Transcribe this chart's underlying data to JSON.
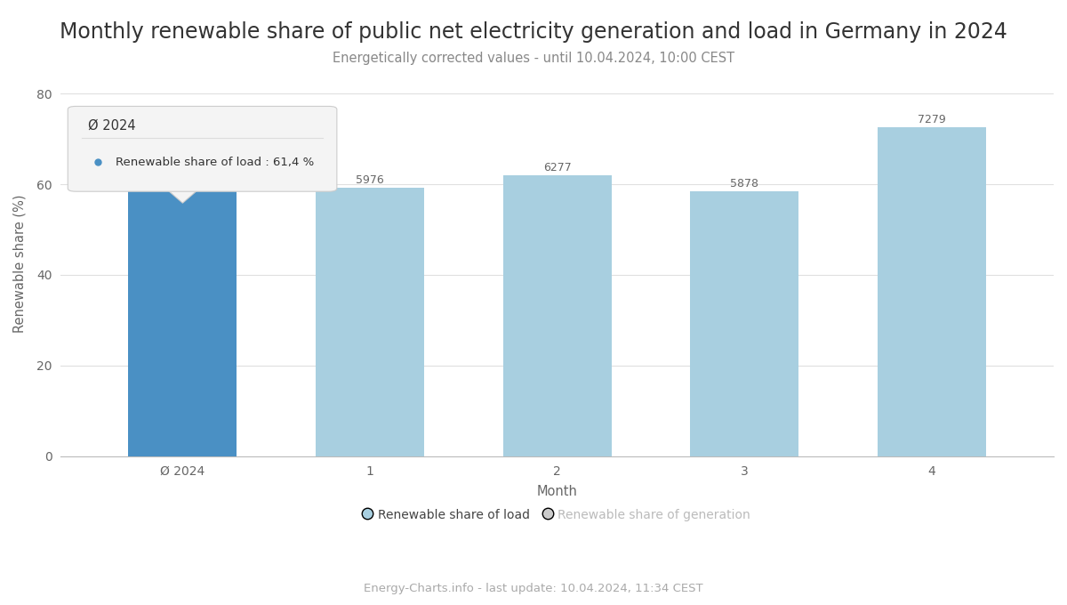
{
  "title": "Monthly renewable share of public net electricity generation and load in Germany in 2024",
  "subtitle": "Energetically corrected values - until 10.04.2024, 10:00 CEST",
  "footer": "Energy-Charts.info - last update: 10.04.2024, 11:34 CEST",
  "xlabel": "Month",
  "ylabel": "Renewable share (%)",
  "categories": [
    "Ø 2024",
    "1",
    "2",
    "3",
    "4"
  ],
  "values": [
    61.4,
    59.2,
    62.0,
    58.5,
    72.5
  ],
  "bar_labels": [
    null,
    "5976",
    "6277",
    "5878",
    "7279"
  ],
  "bar_colors": [
    "#4a90c4",
    "#a8cfe0",
    "#a8cfe0",
    "#a8cfe0",
    "#a8cfe0"
  ],
  "ylim": [
    0,
    85
  ],
  "yticks": [
    0,
    20,
    40,
    60,
    80
  ],
  "background_color": "#ffffff",
  "grid_color": "#e0e0e0",
  "legend_load_color": "#a8cfe0",
  "legend_gen_color": "#cccccc",
  "legend_load_label": "Renewable share of load",
  "legend_gen_label": "Renewable share of generation",
  "tooltip_title": "Ø 2024",
  "tooltip_label": "Renewable share of load",
  "tooltip_value": "61,4 %",
  "tooltip_dot_color": "#4a90c4",
  "title_fontsize": 17,
  "subtitle_fontsize": 10.5,
  "footer_fontsize": 9.5,
  "axis_label_fontsize": 10.5,
  "tick_fontsize": 10,
  "bar_label_fontsize": 9
}
